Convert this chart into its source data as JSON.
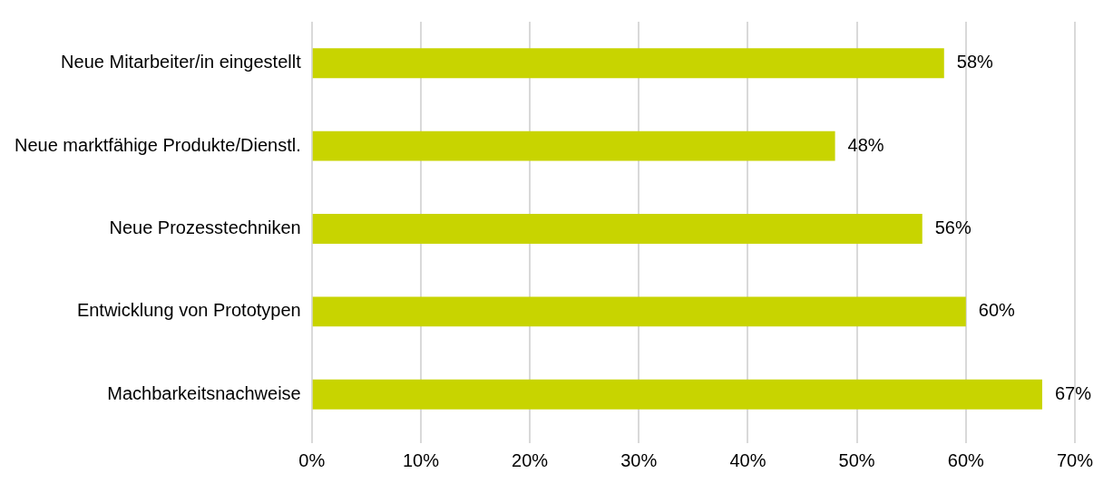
{
  "chart_data": {
    "type": "bar",
    "orientation": "horizontal",
    "categories": [
      "Neue Mitarbeiter/in eingestellt",
      "Neue marktfähige Produkte/Dienstl.",
      "Neue Prozesstechniken",
      "Entwicklung von Prototypen",
      "Machbarkeitsnachweise"
    ],
    "values": [
      58,
      48,
      56,
      60,
      67
    ],
    "color": "#c8d400",
    "xlim": [
      0,
      70
    ],
    "xticks": [
      {
        "value": 0,
        "label": "0%"
      },
      {
        "value": 10,
        "label": "10%"
      },
      {
        "value": 20,
        "label": "20%"
      },
      {
        "value": 30,
        "label": "30%"
      },
      {
        "value": 40,
        "label": "40%"
      },
      {
        "value": 50,
        "label": "50%"
      },
      {
        "value": 60,
        "label": "60%"
      },
      {
        "value": 70,
        "label": "70%"
      }
    ],
    "value_labels": [
      "58%",
      "48%",
      "56%",
      "60%",
      "67%"
    ],
    "grid": "x",
    "legend": false
  }
}
